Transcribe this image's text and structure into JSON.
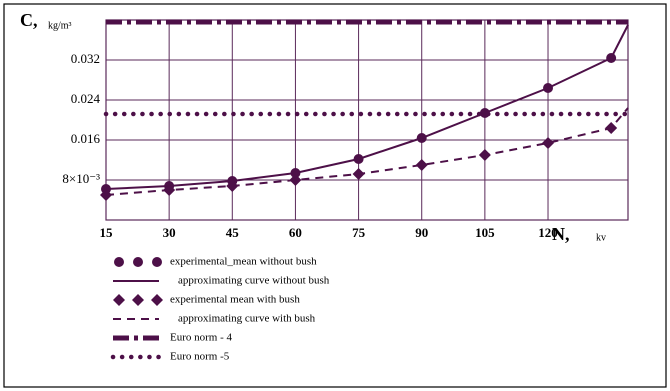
{
  "chart_data": {
    "type": "line",
    "y_label": "C,",
    "y_unit": "kg/m³",
    "x_label": "N,",
    "x_unit": "kv",
    "x": [
      15,
      30,
      45,
      60,
      75,
      90,
      105,
      120,
      135,
      139
    ],
    "xlim": [
      15,
      139
    ],
    "xticks": [
      15,
      30,
      45,
      60,
      75,
      90,
      105,
      120
    ],
    "ylim": [
      0,
      0.04
    ],
    "yticks": [
      {
        "value": 0.008,
        "label": "8×10⁻³"
      },
      0.016,
      0.024,
      0.032
    ],
    "grid": true,
    "series": [
      {
        "name": "experimental_mean without bush",
        "style": "circle",
        "color": "#4d1048",
        "values": [
          0.0062,
          0.0068,
          0.0078,
          0.0094,
          0.0122,
          0.0164,
          0.0214,
          0.0264,
          0.0324,
          null
        ]
      },
      {
        "name": "approximating curve without bush",
        "style": "solid",
        "color": "#4d1048",
        "values": [
          0.0062,
          0.0068,
          0.0078,
          0.0094,
          0.0122,
          0.0164,
          0.0214,
          0.0264,
          0.0324,
          0.039
        ]
      },
      {
        "name": "experimental mean with bush",
        "style": "diamond",
        "color": "#4d1048",
        "values": [
          0.005,
          0.006,
          0.0068,
          0.008,
          0.0092,
          0.011,
          0.013,
          0.0154,
          0.0184,
          null
        ]
      },
      {
        "name": "approximating curve with bush",
        "style": "dashed",
        "color": "#4d1048",
        "values": [
          0.005,
          0.006,
          0.0068,
          0.008,
          0.0092,
          0.011,
          0.013,
          0.0154,
          0.0184,
          0.0224
        ]
      },
      {
        "name": "Euro norm - 4",
        "style": "dashdot",
        "color": "#4d1048",
        "values": [
          0.0396,
          0.0396,
          0.0396,
          0.0396,
          0.0396,
          0.0396,
          0.0396,
          0.0396,
          0.0396,
          0.0396
        ]
      },
      {
        "name": "Euro norm -5",
        "style": "dotted",
        "color": "#4d1048",
        "values": [
          0.0212,
          0.0212,
          0.0212,
          0.0212,
          0.0212,
          0.0212,
          0.0212,
          0.0212,
          0.0212,
          0.0212
        ]
      }
    ]
  }
}
